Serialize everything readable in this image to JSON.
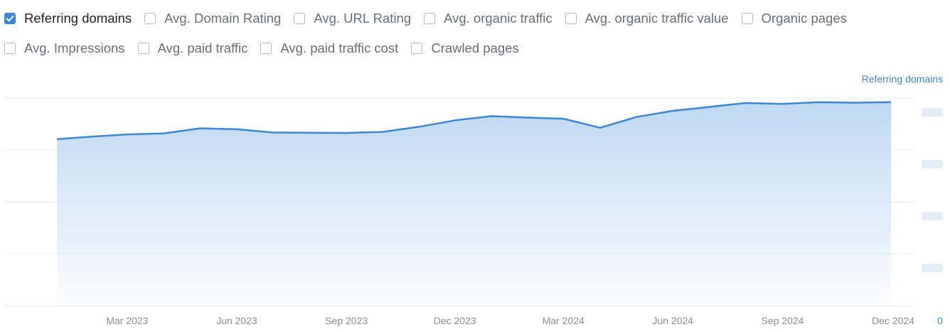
{
  "metrics_row1": [
    {
      "label": "Referring domains",
      "checked": true,
      "name": "metric-referring-domains"
    },
    {
      "label": "Avg. Domain Rating",
      "checked": false,
      "name": "metric-avg-domain-rating"
    },
    {
      "label": "Avg. URL Rating",
      "checked": false,
      "name": "metric-avg-url-rating"
    },
    {
      "label": "Avg. organic traffic",
      "checked": false,
      "name": "metric-avg-organic-traffic"
    },
    {
      "label": "Avg. organic traffic value",
      "checked": false,
      "name": "metric-avg-organic-traffic-value"
    },
    {
      "label": "Organic pages",
      "checked": false,
      "name": "metric-organic-pages"
    }
  ],
  "metrics_row2": [
    {
      "label": "Avg. Impressions",
      "checked": false,
      "name": "metric-avg-impressions"
    },
    {
      "label": "Avg. paid traffic",
      "checked": false,
      "name": "metric-avg-paid-traffic"
    },
    {
      "label": "Avg. paid traffic cost",
      "checked": false,
      "name": "metric-avg-paid-traffic-cost"
    },
    {
      "label": "Crawled pages",
      "checked": false,
      "name": "metric-crawled-pages"
    }
  ],
  "legend_label": "Referring domains",
  "colors": {
    "line": "#3b86d6",
    "area_top": "#bcd6f2",
    "accent": "#3b86d6",
    "grid": "#e8eaed"
  },
  "chart_data": {
    "type": "area",
    "series": [
      {
        "name": "Referring domains",
        "x": [
          "2023-01-01",
          "2023-02-01",
          "2023-03-01",
          "2023-04-01",
          "2023-05-01",
          "2023-06-01",
          "2023-07-01",
          "2023-08-01",
          "2023-09-01",
          "2023-10-01",
          "2023-11-01",
          "2023-12-01",
          "2024-01-01",
          "2024-02-01",
          "2024-03-01",
          "2024-04-01",
          "2024-05-01",
          "2024-06-01",
          "2024-07-01",
          "2024-08-01",
          "2024-09-01",
          "2024-10-01",
          "2024-11-01",
          "2024-12-01"
        ],
        "values": [
          1123,
          1141,
          1155,
          1162,
          1196,
          1190,
          1168,
          1166,
          1165,
          1172,
          1207,
          1250,
          1278,
          1268,
          1261,
          1200,
          1272,
          1314,
          1340,
          1367,
          1361,
          1372,
          1369,
          1373
        ]
      }
    ],
    "x_ticks": [
      "Mar 2023",
      "Jun 2023",
      "Sep 2023",
      "Dec 2023",
      "Mar 2024",
      "Jun 2024",
      "Sep 2024",
      "Dec 2024"
    ],
    "x_tick_dates": [
      "2023-03-01",
      "2023-06-01",
      "2023-09-01",
      "2023-12-01",
      "2024-03-01",
      "2024-06-01",
      "2024-09-01",
      "2024-12-01"
    ],
    "y_ticks": [
      0,
      350,
      700,
      1050,
      1400
    ],
    "y_tick_labels": [
      "0",
      "",
      "",
      "",
      ""
    ],
    "ylim": [
      0,
      1400
    ],
    "grid": true,
    "legend": "top-right"
  }
}
